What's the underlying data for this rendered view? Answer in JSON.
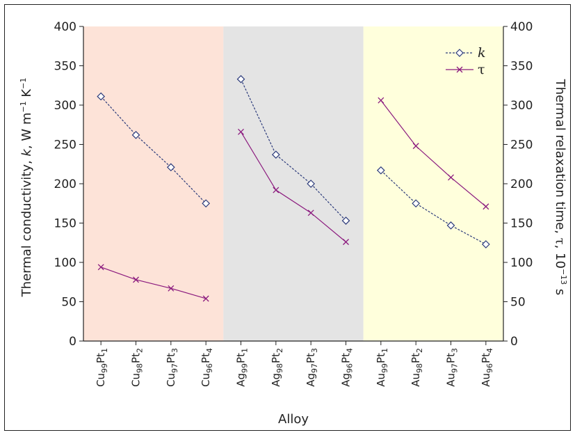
{
  "chart_data": {
    "type": "line",
    "xlabel": "Alloy",
    "ylabel_left": {
      "pre": "Thermal conductivity, ",
      "sym": "k",
      "post": ", W m",
      "sup1": "−1",
      "mid": " K",
      "sup2": "−1"
    },
    "ylabel_right": {
      "pre": "Thermal relaxation time, ",
      "sym": "τ",
      "post": ", 10",
      "sup": "−13",
      "end": " s"
    },
    "ylim_left": [
      0,
      400
    ],
    "ylim_right": [
      0,
      400
    ],
    "yticks": [
      0,
      50,
      100,
      150,
      200,
      250,
      300,
      350,
      400
    ],
    "grid": false,
    "legend_position": "top-right",
    "categories": [
      {
        "base": "Cu",
        "s1": "99",
        "mid": "Pt",
        "s2": "1"
      },
      {
        "base": "Cu",
        "s1": "98",
        "mid": "Pt",
        "s2": "2"
      },
      {
        "base": "Cu",
        "s1": "97",
        "mid": "Pt",
        "s2": "3"
      },
      {
        "base": "Cu",
        "s1": "96",
        "mid": "Pt",
        "s2": "4"
      },
      {
        "base": "Ag",
        "s1": "99",
        "mid": "Pt",
        "s2": "1"
      },
      {
        "base": "Ag",
        "s1": "98",
        "mid": "Pt",
        "s2": "2"
      },
      {
        "base": "Ag",
        "s1": "97",
        "mid": "Pt",
        "s2": "3"
      },
      {
        "base": "Ag",
        "s1": "96",
        "mid": "Pt",
        "s2": "4"
      },
      {
        "base": "Au",
        "s1": "99",
        "mid": "Pt",
        "s2": "1"
      },
      {
        "base": "Au",
        "s1": "98",
        "mid": "Pt",
        "s2": "2"
      },
      {
        "base": "Au",
        "s1": "97",
        "mid": "Pt",
        "s2": "3"
      },
      {
        "base": "Au",
        "s1": "96",
        "mid": "Pt",
        "s2": "4"
      }
    ],
    "groups": [
      {
        "categories": [
          0,
          1,
          2,
          3
        ],
        "color": "#fde3d8"
      },
      {
        "categories": [
          4,
          5,
          6,
          7
        ],
        "color": "#e4e4e4"
      },
      {
        "categories": [
          8,
          9,
          10,
          11
        ],
        "color": "#ffffdc"
      }
    ],
    "series": [
      {
        "name": "k",
        "axis": "left",
        "marker": "diamond",
        "line": "dashed",
        "color": "#2b3a7a",
        "groups": [
          [
            311,
            262,
            221,
            175
          ],
          [
            333,
            237,
            200,
            153
          ],
          [
            217,
            175,
            147,
            123
          ]
        ]
      },
      {
        "name": "τ",
        "axis": "right",
        "marker": "x",
        "line": "solid",
        "color": "#8b1a7e",
        "groups": [
          [
            94,
            78,
            67,
            54
          ],
          [
            266,
            192,
            163,
            126
          ],
          [
            306,
            248,
            208,
            171
          ]
        ]
      }
    ]
  }
}
